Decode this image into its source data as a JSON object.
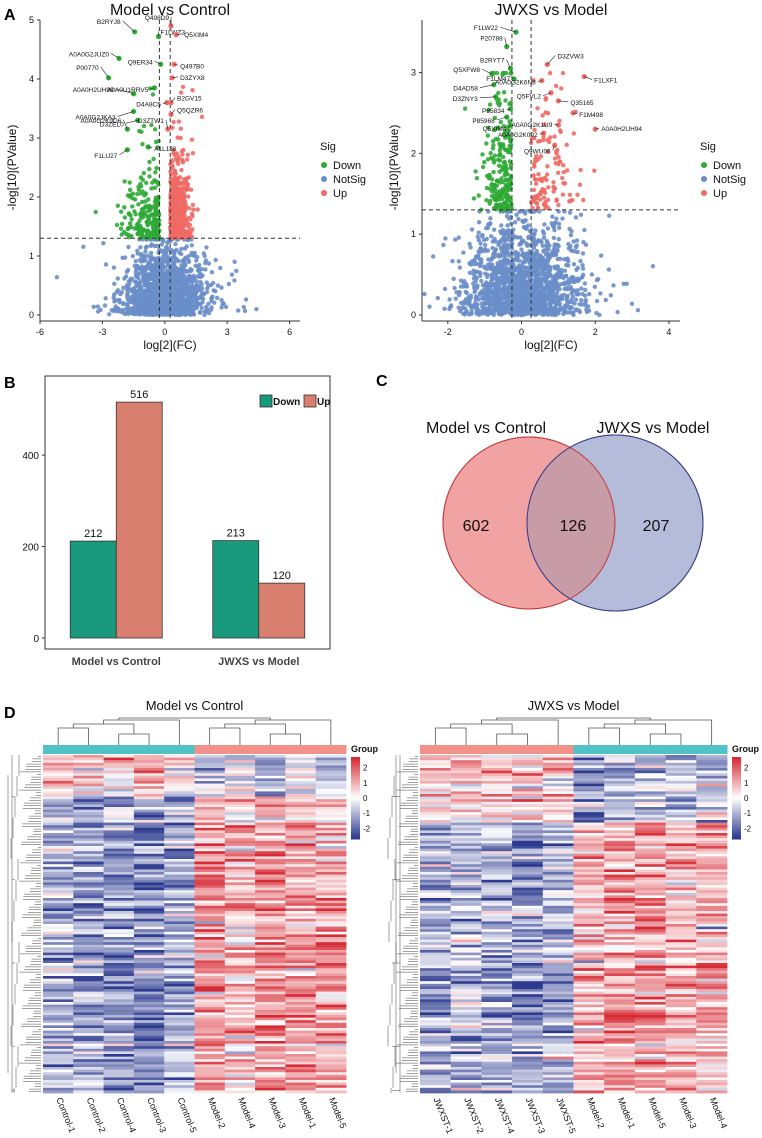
{
  "panels": {
    "A": "A",
    "B": "B",
    "C": "C",
    "D": "D"
  },
  "chart_data": [
    {
      "id": "volcano-model-control",
      "type": "scatter",
      "title": "Model vs Control",
      "xlabel": "log[2](FC)",
      "ylabel": "-log[10](PValue)",
      "xlim": [
        -6,
        6.5
      ],
      "ylim": [
        0,
        5
      ],
      "xticks": [
        -6,
        -3,
        0,
        3,
        6
      ],
      "yticks": [
        0,
        1,
        2,
        3,
        4,
        5
      ],
      "thresholds": {
        "x": [
          -0.26,
          0.26
        ],
        "y": 1.3
      },
      "legend": {
        "title": "Sig",
        "entries": [
          {
            "label": "Down",
            "color": "#2eaa35"
          },
          {
            "label": "NotSig",
            "color": "#6a8ec9"
          },
          {
            "label": "Up",
            "color": "#ef6a65"
          }
        ]
      },
      "point_counts": {
        "down": 212,
        "up": 516,
        "notsig": 1600
      },
      "point_spread": {
        "notsig_x_sd": 0.85,
        "down_x_sd": 0.8,
        "up_x_sd": 0.45
      },
      "labeled_points": [
        {
          "label": "B2RYJ8",
          "x": -1.45,
          "y": 4.8,
          "sig": "down"
        },
        {
          "label": "Q498D9",
          "x": 0.3,
          "y": 4.9,
          "sig": "up"
        },
        {
          "label": "F1LWZ3",
          "x": -0.3,
          "y": 4.72,
          "sig": "down"
        },
        {
          "label": "Q5XIM4",
          "x": 0.55,
          "y": 4.75,
          "sig": "up"
        },
        {
          "label": "A0A0G2JUZ0",
          "x": -2.2,
          "y": 4.35,
          "sig": "down"
        },
        {
          "label": "Q9ER34",
          "x": -0.2,
          "y": 4.25,
          "sig": "down"
        },
        {
          "label": "Q497B0",
          "x": 0.45,
          "y": 4.25,
          "sig": "up"
        },
        {
          "label": "P00770",
          "x": -2.7,
          "y": 4.02,
          "sig": "down"
        },
        {
          "label": "D3ZYX8",
          "x": 0.35,
          "y": 4.02,
          "sig": "up"
        },
        {
          "label": "A0A0U1RRV5",
          "x": -0.5,
          "y": 3.85,
          "sig": "down"
        },
        {
          "label": "A0A0H2UH99",
          "x": -1.5,
          "y": 3.75,
          "sig": "down"
        },
        {
          "label": "D4A8C5",
          "x": 0.1,
          "y": 3.6,
          "sig": "up"
        },
        {
          "label": "B2GV15",
          "x": 0.3,
          "y": 3.6,
          "sig": "up"
        },
        {
          "label": "A0A0G2JKA3",
          "x": -1.5,
          "y": 3.45,
          "sig": "down"
        },
        {
          "label": "Q5QZR6",
          "x": 0.3,
          "y": 3.4,
          "sig": "up"
        },
        {
          "label": "D3ZEL0",
          "x": -1.3,
          "y": 3.3,
          "sig": "down"
        },
        {
          "label": "A0A0G2K9D6",
          "x": -1.8,
          "y": 3.15,
          "sig": "down"
        },
        {
          "label": "D3ZTW1",
          "x": 0.15,
          "y": 3.15,
          "sig": "up"
        },
        {
          "label": "F1LU27",
          "x": -1.8,
          "y": 2.8,
          "sig": "down"
        },
        {
          "label": "A1L1J8",
          "x": -0.8,
          "y": 2.85,
          "sig": "down"
        }
      ]
    },
    {
      "id": "volcano-jwxs-model",
      "type": "scatter",
      "title": "JWXS vs Model",
      "xlabel": "log[2](FC)",
      "ylabel": "-log[10](PValue)",
      "xlim": [
        -2.7,
        4.3
      ],
      "ylim": [
        0,
        3.65
      ],
      "xticks": [
        -2,
        0,
        2,
        4
      ],
      "yticks": [
        0,
        1,
        2,
        3
      ],
      "thresholds": {
        "x": [
          -0.26,
          0.26
        ],
        "y": 1.3
      },
      "legend": {
        "title": "Sig",
        "entries": [
          {
            "label": "Down",
            "color": "#2eaa35"
          },
          {
            "label": "NotSig",
            "color": "#6a8ec9"
          },
          {
            "label": "Up",
            "color": "#ef6a65"
          }
        ]
      },
      "point_counts": {
        "down": 213,
        "up": 120,
        "notsig": 1700
      },
      "point_spread": {
        "notsig_x_sd": 0.7,
        "down_x_sd": 0.4,
        "up_x_sd": 0.6
      },
      "labeled_points": [
        {
          "label": "F1LW22",
          "x": -0.15,
          "y": 3.5,
          "sig": "down"
        },
        {
          "label": "P20788",
          "x": -0.4,
          "y": 3.32,
          "sig": "down"
        },
        {
          "label": "B2RYT7",
          "x": -0.3,
          "y": 3.05,
          "sig": "down"
        },
        {
          "label": "D3ZVW3",
          "x": 0.7,
          "y": 3.1,
          "sig": "up"
        },
        {
          "label": "Q5XFW8",
          "x": -0.8,
          "y": 2.98,
          "sig": "down"
        },
        {
          "label": "D4AD58",
          "x": -0.75,
          "y": 2.85,
          "sig": "down"
        },
        {
          "label": "F1LM47",
          "x": -0.2,
          "y": 2.92,
          "sig": "down"
        },
        {
          "label": "A0A0G2K6N8",
          "x": 0.55,
          "y": 2.9,
          "sig": "up"
        },
        {
          "label": "F1LXF1",
          "x": 1.7,
          "y": 2.95,
          "sig": "up"
        },
        {
          "label": "Q5FVL2",
          "x": 0.8,
          "y": 2.75,
          "sig": "up"
        },
        {
          "label": "D3ZNY3",
          "x": -0.7,
          "y": 2.7,
          "sig": "down"
        },
        {
          "label": "Q35165",
          "x": 1.0,
          "y": 2.65,
          "sig": "up"
        },
        {
          "label": "P85834",
          "x": -0.3,
          "y": 2.55,
          "sig": "down"
        },
        {
          "label": "P85968",
          "x": -0.4,
          "y": 2.45,
          "sig": "down"
        },
        {
          "label": "F1M498",
          "x": 1.4,
          "y": 2.5,
          "sig": "up"
        },
        {
          "label": "Q5XIM4",
          "x": -0.3,
          "y": 2.35,
          "sig": "down"
        },
        {
          "label": "A0A0G2K1U9",
          "x": 1.0,
          "y": 2.35,
          "sig": "up"
        },
        {
          "label": "A0A0H2UH94",
          "x": 2.0,
          "y": 2.3,
          "sig": "up"
        },
        {
          "label": "A0A0G2K092",
          "x": 0.6,
          "y": 2.25,
          "sig": "up"
        },
        {
          "label": "Q9WU06",
          "x": 0.9,
          "y": 2.1,
          "sig": "up"
        }
      ]
    },
    {
      "id": "bar-deps",
      "type": "bar",
      "categories": [
        "Model vs Control",
        "JWXS vs Model"
      ],
      "series": [
        {
          "name": "Down",
          "values": [
            212,
            213
          ],
          "color": "#1a9a7c"
        },
        {
          "name": "Up",
          "values": [
            516,
            120
          ],
          "color": "#d97f6f"
        }
      ],
      "ylim": [
        0,
        560
      ],
      "yticks": [
        0,
        200,
        400
      ],
      "legend": "top-right",
      "title": "",
      "xlabel": "",
      "ylabel": ""
    },
    {
      "id": "venn-deps",
      "type": "venn",
      "sets": [
        {
          "name": "Model vs Control",
          "only": 602,
          "color": "#f1a3a3",
          "stroke": "#c23b3b"
        },
        {
          "name": "JWXS vs Model",
          "only": 207,
          "color": "#a7b0d3",
          "stroke": "#3b3f8a"
        }
      ],
      "intersection": 126
    },
    {
      "id": "heatmap-model-control",
      "type": "heatmap",
      "title": "Model  vs Control",
      "columns": [
        "Control-1",
        "Control-2",
        "Control-4",
        "Control-3",
        "Control-5",
        "Model-2",
        "Model-4",
        "Model-3",
        "Model-1",
        "Model-5"
      ],
      "groups": [
        "control",
        "control",
        "control",
        "control",
        "control",
        "model",
        "model",
        "model",
        "model",
        "model"
      ],
      "group_colors": {
        "control": "#4fc3c8",
        "model": "#f2908a"
      },
      "rows": 130,
      "row_split": 0.12,
      "pattern": [
        [
          0.8,
          0.7,
          0.7,
          0.8,
          0.6,
          -0.5,
          -0.4,
          -1.2,
          -0.3,
          -0.7
        ],
        [
          -1.1,
          -1.3,
          -1.5,
          -1.6,
          -1.2,
          1.2,
          0.8,
          1.4,
          1.1,
          1.1
        ]
      ],
      "legend": {
        "title": "Group",
        "ticks": [
          2,
          1,
          0,
          -1,
          -2
        ]
      },
      "color_scale": {
        "low": "#2c3a8f",
        "mid": "#ffffff",
        "high": "#d72a34",
        "min": -2.7,
        "max": 2.7
      }
    },
    {
      "id": "heatmap-jwxs-model",
      "type": "heatmap",
      "title": "JWXS vs Model",
      "columns": [
        "JWXST-1",
        "JWXST-2",
        "JWXST-4",
        "JWXST-3",
        "JWXST-5",
        "Model-2",
        "Model-1",
        "Model-5",
        "Model-3",
        "Model-4"
      ],
      "groups": [
        "jwxs",
        "jwxs",
        "jwxs",
        "jwxs",
        "jwxs",
        "model",
        "model",
        "model",
        "model",
        "model"
      ],
      "group_colors": {
        "jwxs": "#f2908a",
        "model": "#4fc3c8"
      },
      "rows": 130,
      "row_split": 0.2,
      "pattern": [
        [
          0.6,
          0.5,
          0.6,
          0.5,
          0.4,
          -1.5,
          -0.6,
          -0.4,
          -0.7,
          -0.5
        ],
        [
          -1.2,
          -0.9,
          -1.1,
          -1.3,
          -1.0,
          0.9,
          1.1,
          1.2,
          0.9,
          1.0
        ]
      ],
      "legend": {
        "title": "Group",
        "ticks": [
          2,
          1,
          0,
          -1,
          -2
        ]
      },
      "color_scale": {
        "low": "#2c3a8f",
        "mid": "#ffffff",
        "high": "#d72a34",
        "min": -2.7,
        "max": 2.7
      }
    }
  ]
}
